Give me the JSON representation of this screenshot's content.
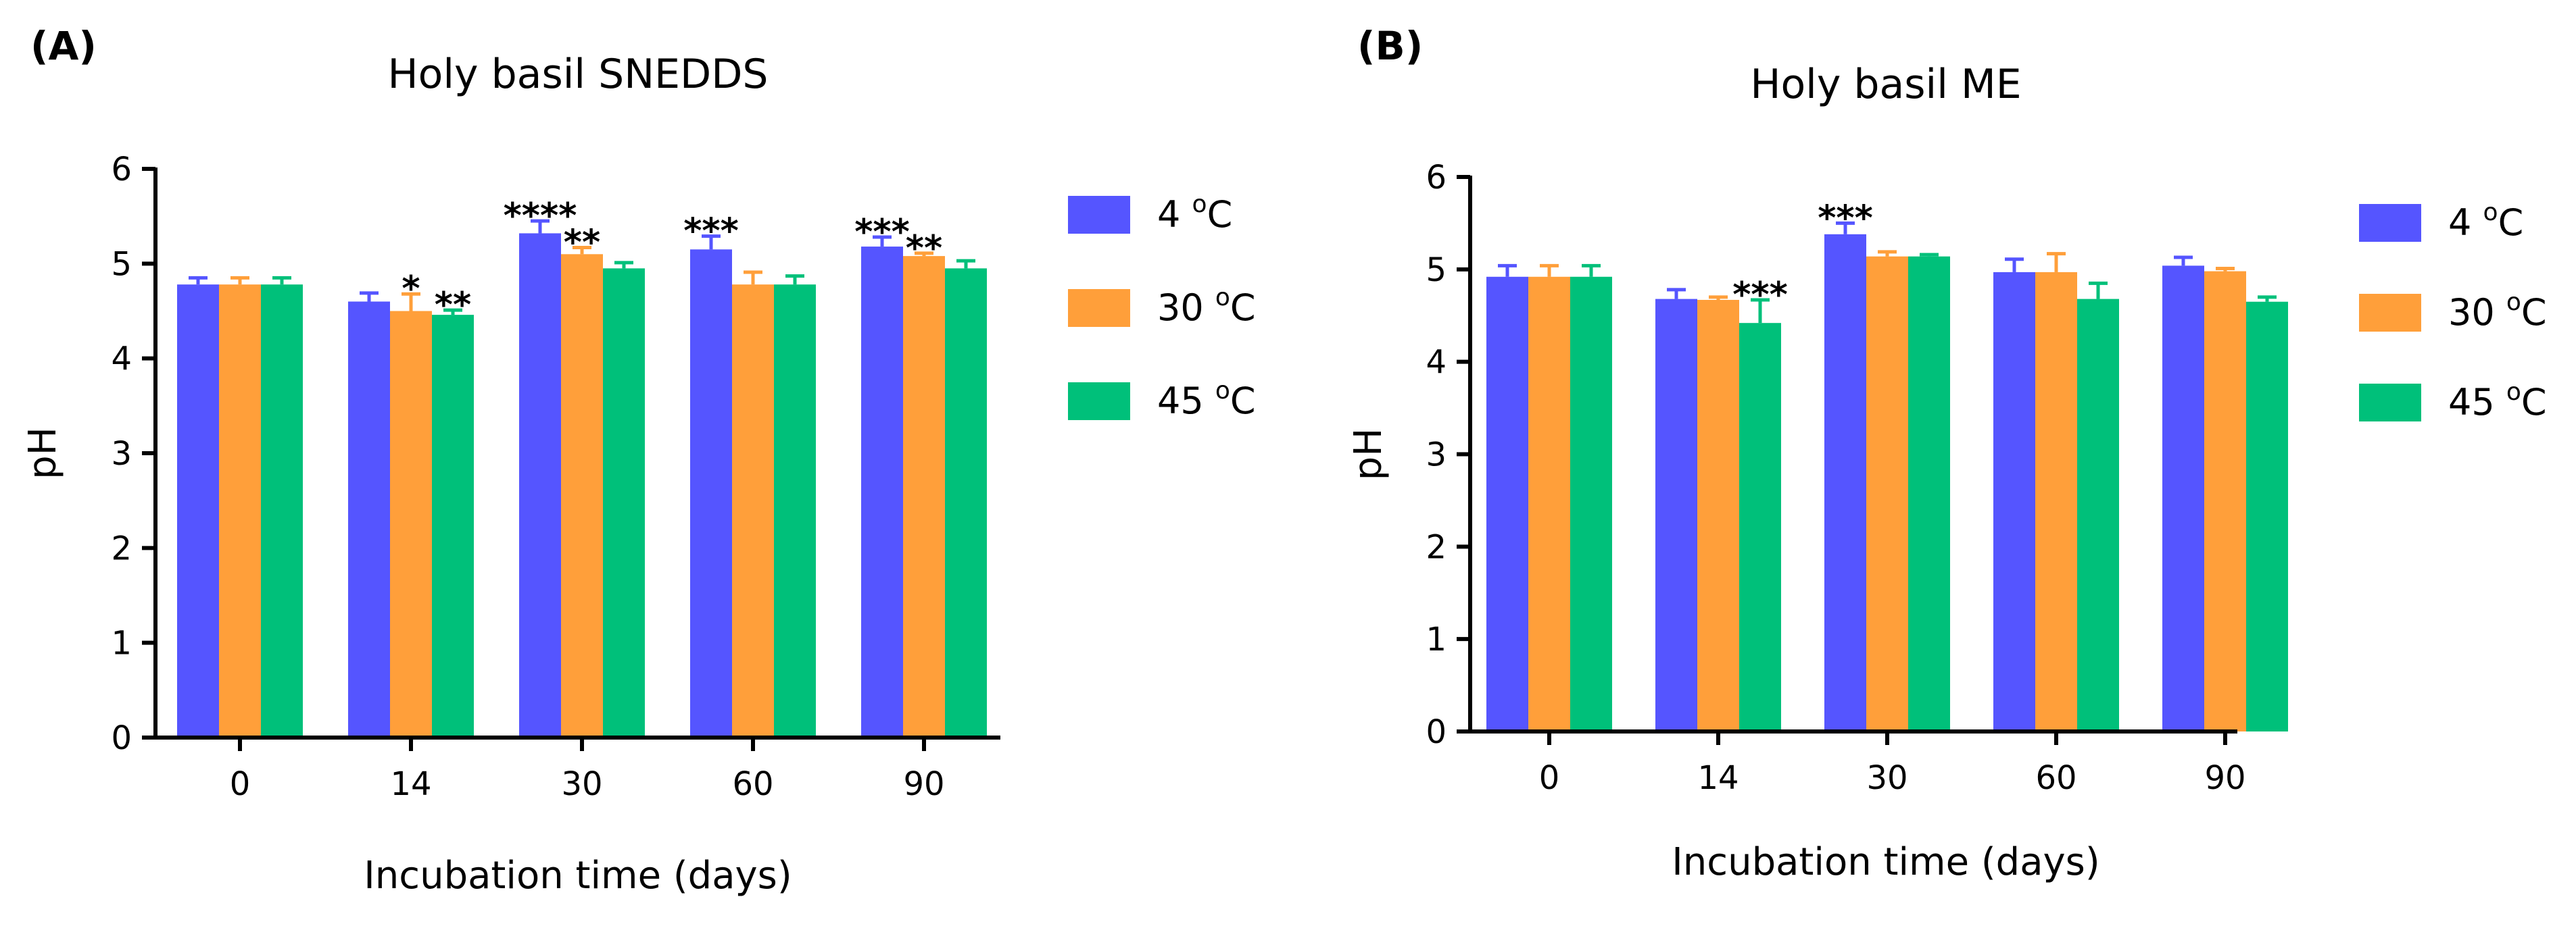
{
  "chart_data": [
    {
      "type": "bar",
      "panel_label": "(A)",
      "title": "Holy basil SNEDDS",
      "xlabel": "Incubation time (days)",
      "ylabel": "pH",
      "ylim": [
        0,
        6
      ],
      "yticks": [
        "0",
        "1",
        "2",
        "3",
        "4",
        "5",
        "6"
      ],
      "categories": [
        "0",
        "14",
        "30",
        "60",
        "90"
      ],
      "series": [
        {
          "name": "4",
          "unit": "C",
          "color": "#5555FF",
          "values": [
            4.78,
            4.6,
            5.32,
            5.15,
            5.18
          ],
          "errors": [
            0.07,
            0.09,
            0.13,
            0.14,
            0.1
          ],
          "sig": [
            "",
            "",
            "****",
            "***",
            "***"
          ]
        },
        {
          "name": "30",
          "unit": "C",
          "color": "#FF9F3A",
          "values": [
            4.78,
            4.5,
            5.1,
            4.78,
            5.08
          ],
          "errors": [
            0.07,
            0.18,
            0.07,
            0.13,
            0.03
          ],
          "sig": [
            "",
            "*",
            "**",
            "",
            "**"
          ]
        },
        {
          "name": "45",
          "unit": "C",
          "color": "#00C07A",
          "values": [
            4.78,
            4.46,
            4.95,
            4.78,
            4.95
          ],
          "errors": [
            0.07,
            0.05,
            0.06,
            0.09,
            0.08
          ],
          "sig": [
            "",
            "**",
            "",
            "",
            ""
          ]
        }
      ]
    },
    {
      "type": "bar",
      "panel_label": "(B)",
      "title": "Holy basil ME",
      "xlabel": "Incubation time (days)",
      "ylabel": "pH",
      "ylim": [
        0,
        6
      ],
      "yticks": [
        "0",
        "1",
        "2",
        "3",
        "4",
        "5",
        "6"
      ],
      "categories": [
        "0",
        "14",
        "30",
        "60",
        "90"
      ],
      "series": [
        {
          "name": "4",
          "unit": "C",
          "color": "#5555FF",
          "values": [
            4.92,
            4.68,
            5.38,
            4.97,
            5.04
          ],
          "errors": [
            0.12,
            0.1,
            0.12,
            0.14,
            0.09
          ],
          "sig": [
            "",
            "",
            "***",
            "",
            ""
          ]
        },
        {
          "name": "30",
          "unit": "C",
          "color": "#FF9F3A",
          "values": [
            4.92,
            4.67,
            5.14,
            4.97,
            4.98
          ],
          "errors": [
            0.12,
            0.03,
            0.05,
            0.2,
            0.03
          ],
          "sig": [
            "",
            "",
            "",
            "",
            ""
          ]
        },
        {
          "name": "45",
          "unit": "C",
          "color": "#00C07A",
          "values": [
            4.92,
            4.42,
            5.14,
            4.68,
            4.65
          ],
          "errors": [
            0.12,
            0.25,
            0.02,
            0.17,
            0.05
          ],
          "sig": [
            "",
            "***",
            "",
            "",
            ""
          ]
        }
      ]
    }
  ]
}
